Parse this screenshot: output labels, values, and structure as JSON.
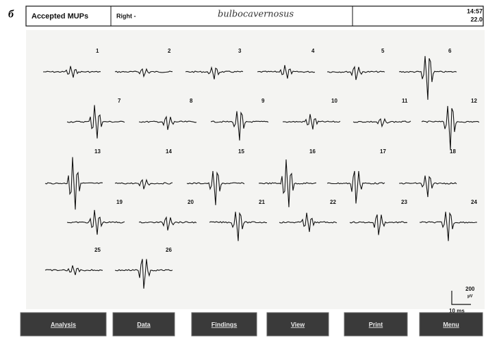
{
  "panel_label": "б",
  "header": {
    "title": "Accepted MUPs",
    "side": "Right -",
    "muscle": "bulbocavernosus",
    "time": "14:57",
    "date": "22.0"
  },
  "mups": [
    "1",
    "2",
    "3",
    "4",
    "5",
    "6",
    "7",
    "8",
    "9",
    "10",
    "11",
    "12",
    "13",
    "14",
    "15",
    "16",
    "17",
    "18",
    "19",
    "20",
    "21",
    "22",
    "23",
    "24",
    "25",
    "26"
  ],
  "scale": {
    "amplitude": "200",
    "amplitude_unit": "µV",
    "time": "10 ms"
  },
  "buttons": [
    "Analysis",
    "Data",
    "Findings",
    "View",
    "Print",
    "Menu"
  ]
}
